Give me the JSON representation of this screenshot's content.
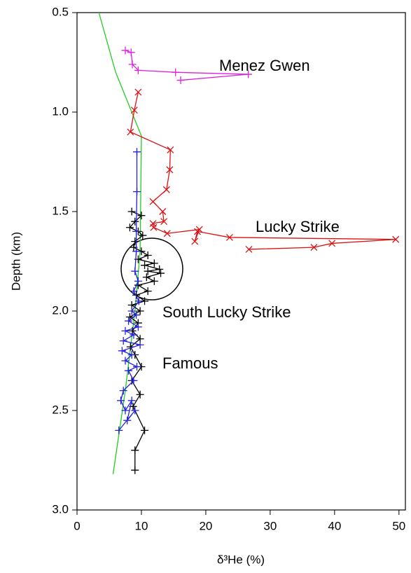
{
  "chart_data": {
    "type": "line",
    "xlabel": "δ³He (%)",
    "ylabel": "Depth (km)",
    "xlim": [
      0,
      51
    ],
    "xticks": [
      0,
      10,
      20,
      30,
      40,
      50
    ],
    "ylim": [
      0.5,
      3.0
    ],
    "y_inverted": true,
    "yticks": [
      0.5,
      {
        "value": 1,
        "label": "1.0"
      },
      1.5,
      {
        "value": 2,
        "label": "2.0"
      },
      2.5,
      {
        "value": 3,
        "label": "3.0"
      }
    ],
    "series": [
      {
        "color": "#22cc22",
        "marker": "none",
        "x": [
          3.4,
          6,
          10,
          9.8,
          9,
          7.5,
          5.6
        ],
        "values": [
          0.5,
          0.8,
          1.12,
          1.7,
          2.0,
          2.4,
          2.82
        ]
      },
      {
        "name": "Menez Gwen",
        "color": "#dd22dd",
        "marker": "plus",
        "x": [
          7.5,
          8.4,
          8.6,
          9.5,
          15.3,
          26.6,
          16.1
        ],
        "values": [
          0.69,
          0.7,
          0.76,
          0.79,
          0.8,
          0.81,
          0.84
        ]
      },
      {
        "name": "Lucky Strike",
        "color": "#dd1111",
        "marker": "cross",
        "x": [
          9.5,
          8.9,
          8.3,
          14.5,
          14.4,
          13.9,
          11.8,
          13.3,
          13.5,
          11.8,
          11.9,
          14,
          19,
          18.3,
          18.7,
          23.7,
          49.5,
          39.6,
          36.8,
          26.7
        ],
        "values": [
          0.9,
          0.99,
          1.1,
          1.19,
          1.29,
          1.39,
          1.45,
          1.5,
          1.55,
          1.56,
          1.58,
          1.61,
          1.59,
          1.65,
          1.6,
          1.63,
          1.64,
          1.66,
          1.68,
          1.69
        ]
      },
      {
        "name": "South Lucky Strike",
        "color": "#000000",
        "marker": "plus",
        "x": [
          8.5,
          10,
          9,
          8.2,
          9.5,
          10.2,
          9,
          8.8,
          10,
          11,
          9.5,
          12,
          10.5,
          12.8,
          11,
          13,
          10.8,
          12,
          9.5,
          11,
          9.2,
          10.5,
          8.5,
          9.8,
          8.2,
          9.5,
          8.6,
          9.8,
          8.3,
          9,
          10,
          8.5,
          9.8,
          8.7,
          10.5,
          9,
          9
        ],
        "values": [
          1.5,
          1.52,
          1.55,
          1.58,
          1.6,
          1.62,
          1.65,
          1.68,
          1.7,
          1.72,
          1.74,
          1.76,
          1.77,
          1.79,
          1.8,
          1.81,
          1.83,
          1.85,
          1.87,
          1.9,
          1.92,
          1.95,
          1.97,
          2.0,
          2.03,
          2.06,
          2.1,
          2.14,
          2.18,
          2.22,
          2.28,
          2.35,
          2.42,
          2.48,
          2.6,
          2.7,
          2.8
        ]
      },
      {
        "name": "Famous",
        "color": "#2222dd",
        "marker": "plus",
        "x": [
          9.3,
          9.3,
          9.2,
          9.2,
          9,
          9.5,
          8.8,
          9.6,
          8.5,
          9.2,
          8,
          9.5,
          7.5,
          8.8,
          7.2,
          9.8,
          7,
          8.5,
          7.5,
          9.3,
          8,
          8.8,
          7.2,
          6.8,
          7.5,
          8.5,
          7.8,
          9,
          6.5
        ],
        "values": [
          1.2,
          1.4,
          1.6,
          1.7,
          1.8,
          1.85,
          1.9,
          1.95,
          2.0,
          2.02,
          2.05,
          2.08,
          2.1,
          2.12,
          2.15,
          2.17,
          2.2,
          2.22,
          2.25,
          2.28,
          2.3,
          2.35,
          2.4,
          2.45,
          2.5,
          2.45,
          2.55,
          2.5,
          2.6
        ]
      }
    ]
  }
}
